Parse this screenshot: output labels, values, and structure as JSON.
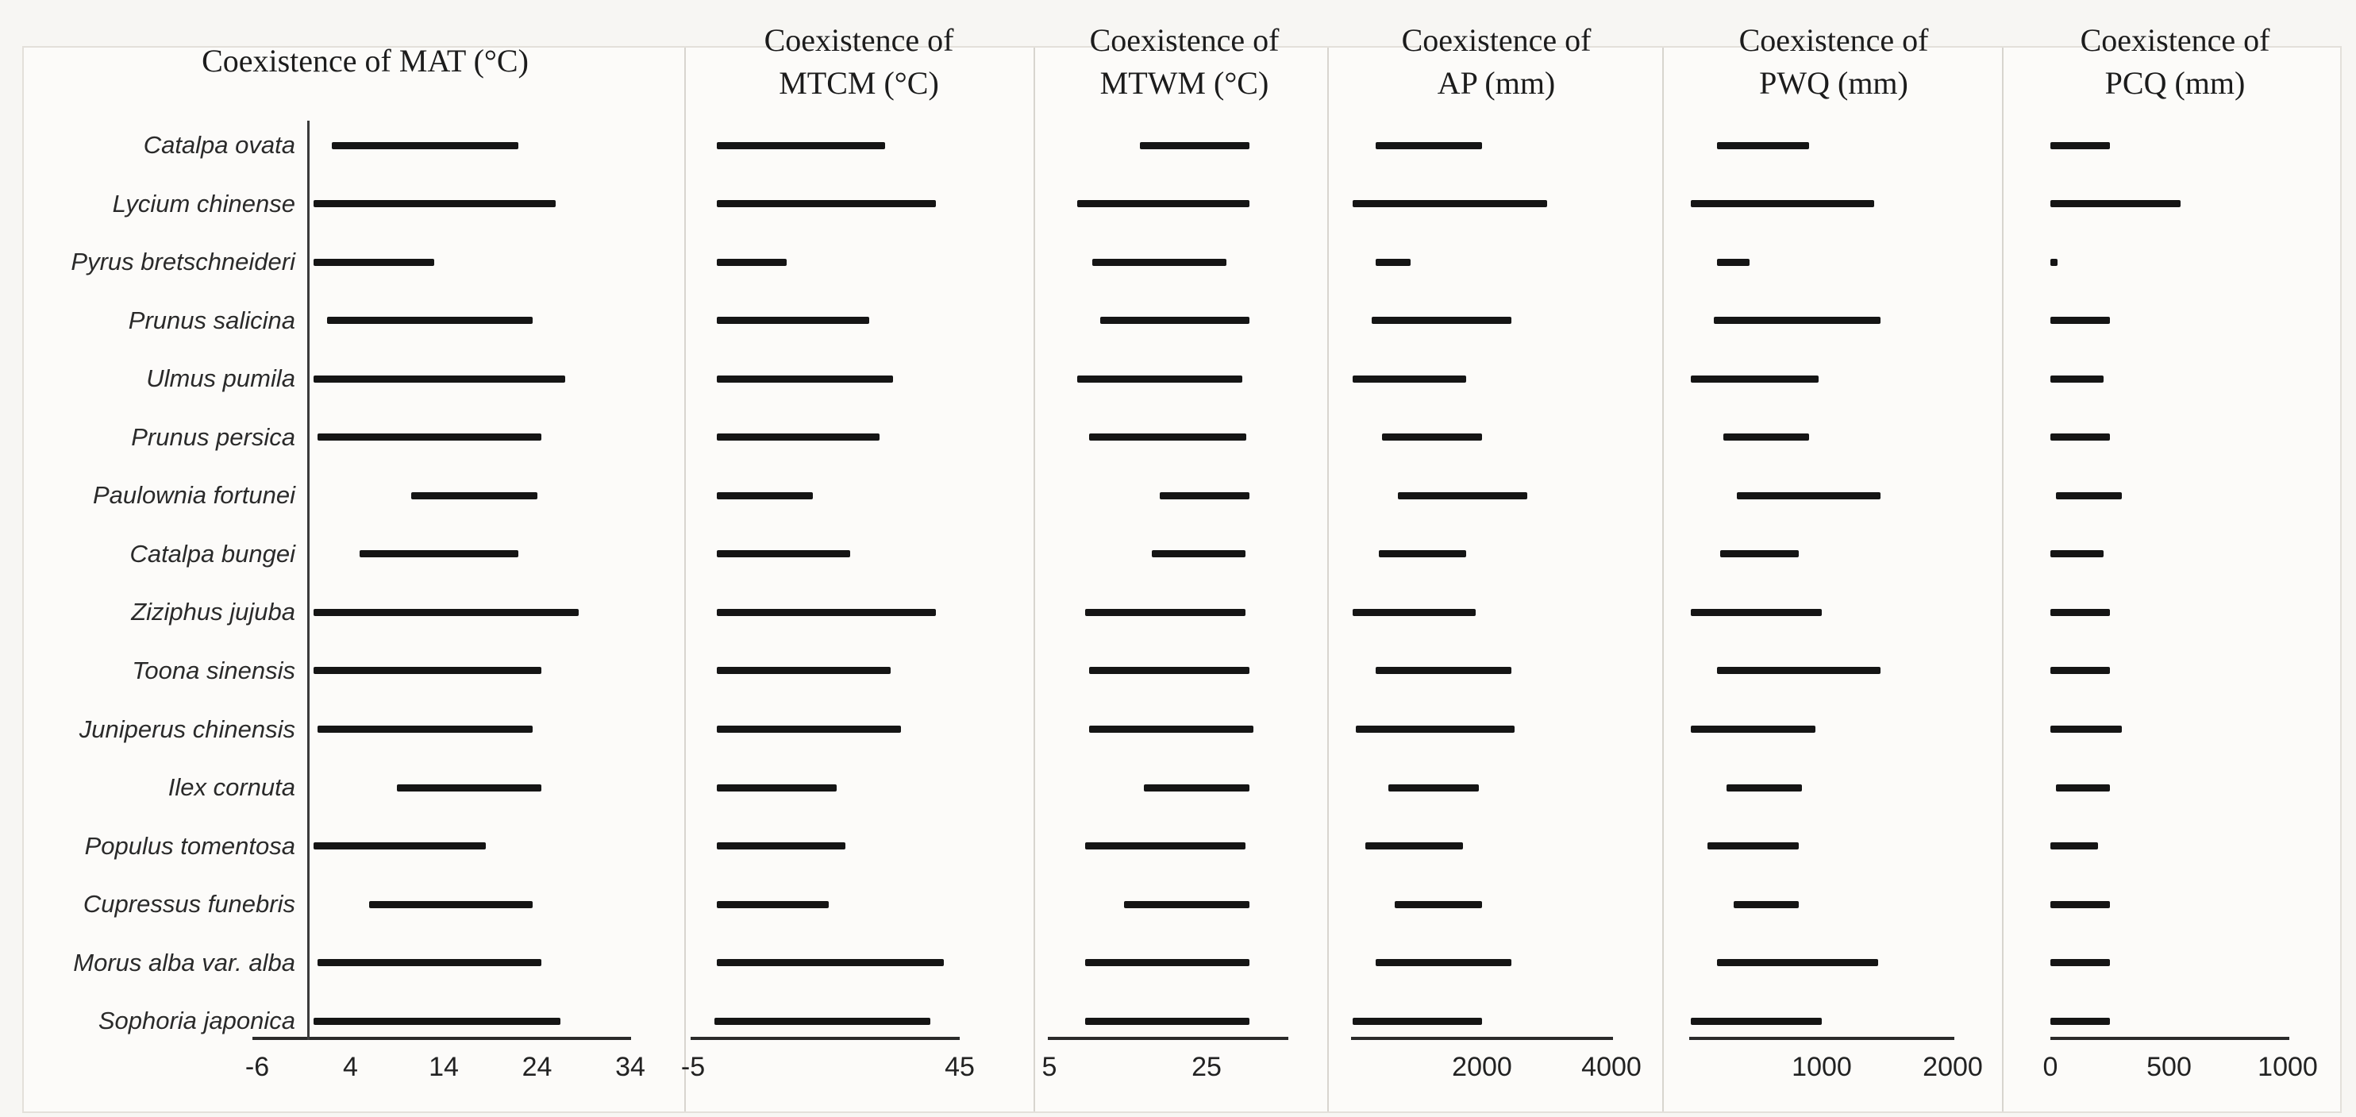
{
  "figure": {
    "description": "Coexistence ranges of six climate variables for sixteen tree species",
    "bar_color": "#151515",
    "axis_color": "#2b2b2b",
    "background": "#f7f6f3"
  },
  "species": [
    "Catalpa ovata",
    "Lycium chinense",
    "Pyrus bretschneideri",
    "Prunus salicina",
    "Ulmus pumila",
    "Prunus persica",
    "Paulownia fortunei",
    "Catalpa bungei",
    "Ziziphus jujuba",
    "Toona sinensis",
    "Juniperus chinensis",
    "Ilex cornuta",
    "Populus tomentosa",
    "Cupressus funebris",
    "Morus alba var. alba",
    "Sophoria japonica"
  ],
  "chart_data": [
    {
      "type": "bar",
      "subtype": "horizontal-range",
      "title": "Coexistence of MAT (°C)",
      "title_lines": [
        "Coexistence of MAT (°C)"
      ],
      "xlim": [
        -6,
        34
      ],
      "xticks": [
        -6,
        4,
        14,
        24,
        34
      ],
      "xtick_labels": [
        "-6",
        "4",
        "14",
        "24",
        "34"
      ],
      "has_y_axis_line": true,
      "y_axis_at_value": -0.5,
      "categories": [
        "Catalpa ovata",
        "Lycium chinense",
        "Pyrus bretschneideri",
        "Prunus salicina",
        "Ulmus pumila",
        "Prunus persica",
        "Paulownia fortunei",
        "Catalpa bungei",
        "Ziziphus jujuba",
        "Toona sinensis",
        "Juniperus chinensis",
        "Ilex cornuta",
        "Populus tomentosa",
        "Cupressus funebris",
        "Morus alba var. alba",
        "Sophoria japonica"
      ],
      "ranges": [
        [
          2,
          22
        ],
        [
          0,
          26
        ],
        [
          0,
          13
        ],
        [
          1.5,
          23.5
        ],
        [
          0,
          27
        ],
        [
          0.5,
          24.5
        ],
        [
          10.5,
          24
        ],
        [
          5,
          22
        ],
        [
          0,
          28.5
        ],
        [
          0,
          24.5
        ],
        [
          0.5,
          23.5
        ],
        [
          9,
          24.5
        ],
        [
          0,
          18.5
        ],
        [
          6,
          23.5
        ],
        [
          0.5,
          24.5
        ],
        [
          0,
          26.5
        ]
      ]
    },
    {
      "type": "bar",
      "subtype": "horizontal-range",
      "title": "Coexistence of MTCM (°C)",
      "title_lines": [
        "Coexistence of",
        "MTCM (°C)"
      ],
      "xlim": [
        -5,
        45
      ],
      "xticks": [
        -5,
        45
      ],
      "xtick_labels": [
        "-5",
        "45"
      ],
      "has_y_axis_line": false,
      "categories": [
        "Catalpa ovata",
        "Lycium chinense",
        "Pyrus bretschneideri",
        "Prunus salicina",
        "Ulmus pumila",
        "Prunus persica",
        "Paulownia fortunei",
        "Catalpa bungei",
        "Ziziphus jujuba",
        "Toona sinensis",
        "Juniperus chinensis",
        "Ilex cornuta",
        "Populus tomentosa",
        "Cupressus funebris",
        "Morus alba var. alba",
        "Sophoria japonica"
      ],
      "ranges": [
        [
          -0.5,
          31
        ],
        [
          -0.5,
          40.5
        ],
        [
          -0.5,
          12.5
        ],
        [
          -0.5,
          28
        ],
        [
          -0.5,
          32.5
        ],
        [
          -0.5,
          30
        ],
        [
          -0.5,
          17.5
        ],
        [
          -0.5,
          24.5
        ],
        [
          -0.5,
          40.5
        ],
        [
          -0.5,
          32
        ],
        [
          -0.5,
          34
        ],
        [
          -0.5,
          22
        ],
        [
          -0.5,
          23.5
        ],
        [
          -0.5,
          20.5
        ],
        [
          -0.5,
          42
        ],
        [
          -1,
          39.5
        ]
      ]
    },
    {
      "type": "bar",
      "subtype": "horizontal-range",
      "title": "Coexistence of MTWM (°C)",
      "title_lines": [
        "Coexistence of",
        "MTWM (°C)"
      ],
      "xlim": [
        5,
        35
      ],
      "xticks": [
        5,
        25
      ],
      "xtick_labels": [
        "5",
        "25"
      ],
      "has_y_axis_line": false,
      "categories": [
        "Catalpa ovata",
        "Lycium chinense",
        "Pyrus bretschneideri",
        "Prunus salicina",
        "Ulmus pumila",
        "Prunus persica",
        "Paulownia fortunei",
        "Catalpa bungei",
        "Ziziphus jujuba",
        "Toona sinensis",
        "Juniperus chinensis",
        "Ilex cornuta",
        "Populus tomentosa",
        "Cupressus funebris",
        "Morus alba var. alba",
        "Sophoria japonica"
      ],
      "ranges": [
        [
          16.5,
          30.5
        ],
        [
          8.5,
          30.5
        ],
        [
          10.5,
          27.5
        ],
        [
          11.5,
          30.5
        ],
        [
          8.5,
          29.5
        ],
        [
          10,
          30
        ],
        [
          19,
          30.5
        ],
        [
          18,
          30
        ],
        [
          9.5,
          30
        ],
        [
          10,
          30.5
        ],
        [
          10,
          31
        ],
        [
          17,
          30.5
        ],
        [
          9.5,
          30
        ],
        [
          14.5,
          30.5
        ],
        [
          9.5,
          30.5
        ],
        [
          9.5,
          30.5
        ]
      ]
    },
    {
      "type": "bar",
      "subtype": "horizontal-range",
      "title": "Coexistence of AP (mm)",
      "title_lines": [
        "Coexistence of",
        "AP (mm)"
      ],
      "xlim": [
        0,
        4000
      ],
      "xticks": [
        2000,
        4000
      ],
      "xtick_labels": [
        "2000",
        "4000"
      ],
      "has_y_axis_line": false,
      "categories": [
        "Catalpa ovata",
        "Lycium chinense",
        "Pyrus bretschneideri",
        "Prunus salicina",
        "Ulmus pumila",
        "Prunus persica",
        "Paulownia fortunei",
        "Catalpa bungei",
        "Ziziphus jujuba",
        "Toona sinensis",
        "Juniperus chinensis",
        "Ilex cornuta",
        "Populus tomentosa",
        "Cupressus funebris",
        "Morus alba var. alba",
        "Sophoria japonica"
      ],
      "ranges": [
        [
          350,
          2000
        ],
        [
          0,
          3000
        ],
        [
          350,
          900
        ],
        [
          300,
          2450
        ],
        [
          0,
          1750
        ],
        [
          450,
          2000
        ],
        [
          700,
          2700
        ],
        [
          400,
          1750
        ],
        [
          0,
          1900
        ],
        [
          350,
          2450
        ],
        [
          50,
          2500
        ],
        [
          550,
          1950
        ],
        [
          200,
          1700
        ],
        [
          650,
          2000
        ],
        [
          350,
          2450
        ],
        [
          0,
          2000
        ]
      ]
    },
    {
      "type": "bar",
      "subtype": "horizontal-range",
      "title": "Coexistence of PWQ (mm)",
      "title_lines": [
        "Coexistence of",
        "PWQ (mm)"
      ],
      "xlim": [
        0,
        2000
      ],
      "xticks": [
        1000,
        2000
      ],
      "xtick_labels": [
        "1000",
        "2000"
      ],
      "has_y_axis_line": false,
      "categories": [
        "Catalpa ovata",
        "Lycium chinense",
        "Pyrus bretschneideri",
        "Prunus salicina",
        "Ulmus pumila",
        "Prunus persica",
        "Paulownia fortunei",
        "Catalpa bungei",
        "Ziziphus jujuba",
        "Toona sinensis",
        "Juniperus chinensis",
        "Ilex cornuta",
        "Populus tomentosa",
        "Cupressus funebris",
        "Morus alba var. alba",
        "Sophoria japonica"
      ],
      "ranges": [
        [
          200,
          900
        ],
        [
          0,
          1400
        ],
        [
          200,
          450
        ],
        [
          175,
          1450
        ],
        [
          0,
          975
        ],
        [
          250,
          900
        ],
        [
          350,
          1450
        ],
        [
          225,
          825
        ],
        [
          0,
          1000
        ],
        [
          200,
          1450
        ],
        [
          0,
          950
        ],
        [
          275,
          850
        ],
        [
          125,
          825
        ],
        [
          325,
          825
        ],
        [
          200,
          1430
        ],
        [
          0,
          1000
        ]
      ]
    },
    {
      "type": "bar",
      "subtype": "horizontal-range",
      "title": "Coexistence of PCQ (mm)",
      "title_lines": [
        "Coexistence of",
        "PCQ (mm)"
      ],
      "xlim": [
        0,
        1000
      ],
      "xticks": [
        0,
        500,
        1000
      ],
      "xtick_labels": [
        "0",
        "500",
        "1000"
      ],
      "has_y_axis_line": false,
      "categories": [
        "Catalpa ovata",
        "Lycium chinense",
        "Pyrus bretschneideri",
        "Prunus salicina",
        "Ulmus pumila",
        "Prunus persica",
        "Paulownia fortunei",
        "Catalpa bungei",
        "Ziziphus jujuba",
        "Toona sinensis",
        "Juniperus chinensis",
        "Ilex cornuta",
        "Populus tomentosa",
        "Cupressus funebris",
        "Morus alba var. alba",
        "Sophoria japonica"
      ],
      "ranges": [
        [
          0,
          250
        ],
        [
          0,
          550
        ],
        [
          0,
          30
        ],
        [
          0,
          250
        ],
        [
          0,
          225
        ],
        [
          0,
          250
        ],
        [
          25,
          300
        ],
        [
          0,
          225
        ],
        [
          0,
          250
        ],
        [
          0,
          250
        ],
        [
          0,
          300
        ],
        [
          25,
          250
        ],
        [
          0,
          200
        ],
        [
          0,
          250
        ],
        [
          0,
          250
        ],
        [
          0,
          250
        ]
      ]
    }
  ]
}
